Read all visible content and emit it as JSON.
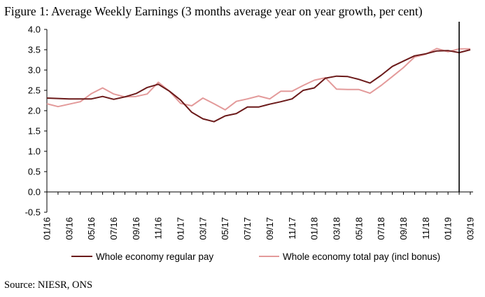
{
  "figure": {
    "title": "Figure 1: Average Weekly Earnings (3 months average year on year growth, per cent)",
    "source": "Source: NIESR, ONS"
  },
  "chart_data": {
    "type": "line",
    "x_ticks": [
      "01/16",
      "03/16",
      "05/16",
      "07/16",
      "09/16",
      "11/16",
      "01/17",
      "03/17",
      "05/17",
      "07/17",
      "09/17",
      "11/17",
      "01/18",
      "03/18",
      "05/18",
      "07/18",
      "09/18",
      "11/18",
      "01/19",
      "03/19"
    ],
    "y_ticks": [
      "4.0",
      "3.5",
      "3.0",
      "2.5",
      "2.0",
      "1.5",
      "1.0",
      "0.5",
      "0.0",
      "-0.5"
    ],
    "ylim": [
      -0.5,
      4.0
    ],
    "xlabel": "",
    "ylabel": "",
    "grid": false,
    "legend_position": "bottom",
    "x": [
      "01/16",
      "02/16",
      "03/16",
      "04/16",
      "05/16",
      "06/16",
      "07/16",
      "08/16",
      "09/16",
      "10/16",
      "11/16",
      "12/16",
      "01/17",
      "02/17",
      "03/17",
      "04/17",
      "05/17",
      "06/17",
      "07/17",
      "08/17",
      "09/17",
      "10/17",
      "11/17",
      "12/17",
      "01/18",
      "02/18",
      "03/18",
      "04/18",
      "05/18",
      "06/18",
      "07/18",
      "08/18",
      "09/18",
      "10/18",
      "11/18",
      "12/18",
      "01/19",
      "02/19",
      "03/19"
    ],
    "series": [
      {
        "name": "Whole economy regular pay",
        "color": "#6b1a1a",
        "values": [
          2.31,
          2.3,
          2.29,
          2.29,
          2.29,
          2.35,
          2.28,
          2.34,
          2.42,
          2.57,
          2.65,
          2.48,
          2.26,
          1.96,
          1.8,
          1.73,
          1.87,
          1.93,
          2.09,
          2.09,
          2.16,
          2.22,
          2.29,
          2.5,
          2.56,
          2.8,
          2.85,
          2.84,
          2.77,
          2.68,
          2.87,
          3.09,
          3.22,
          3.35,
          3.4,
          3.47,
          3.48,
          3.43,
          3.5
        ]
      },
      {
        "name": "Whole economy total pay (incl bonus)",
        "color": "#e39a9a",
        "values": [
          2.17,
          2.1,
          2.16,
          2.22,
          2.42,
          2.56,
          2.41,
          2.34,
          2.35,
          2.41,
          2.7,
          2.48,
          2.18,
          2.12,
          2.31,
          2.17,
          2.02,
          2.23,
          2.29,
          2.36,
          2.29,
          2.48,
          2.48,
          2.62,
          2.75,
          2.81,
          2.53,
          2.52,
          2.52,
          2.43,
          2.62,
          2.84,
          3.06,
          3.32,
          3.39,
          3.53,
          3.45,
          3.52,
          3.52
        ]
      }
    ],
    "vertical_marker": {
      "x": "02/19",
      "color": "#000000"
    }
  }
}
